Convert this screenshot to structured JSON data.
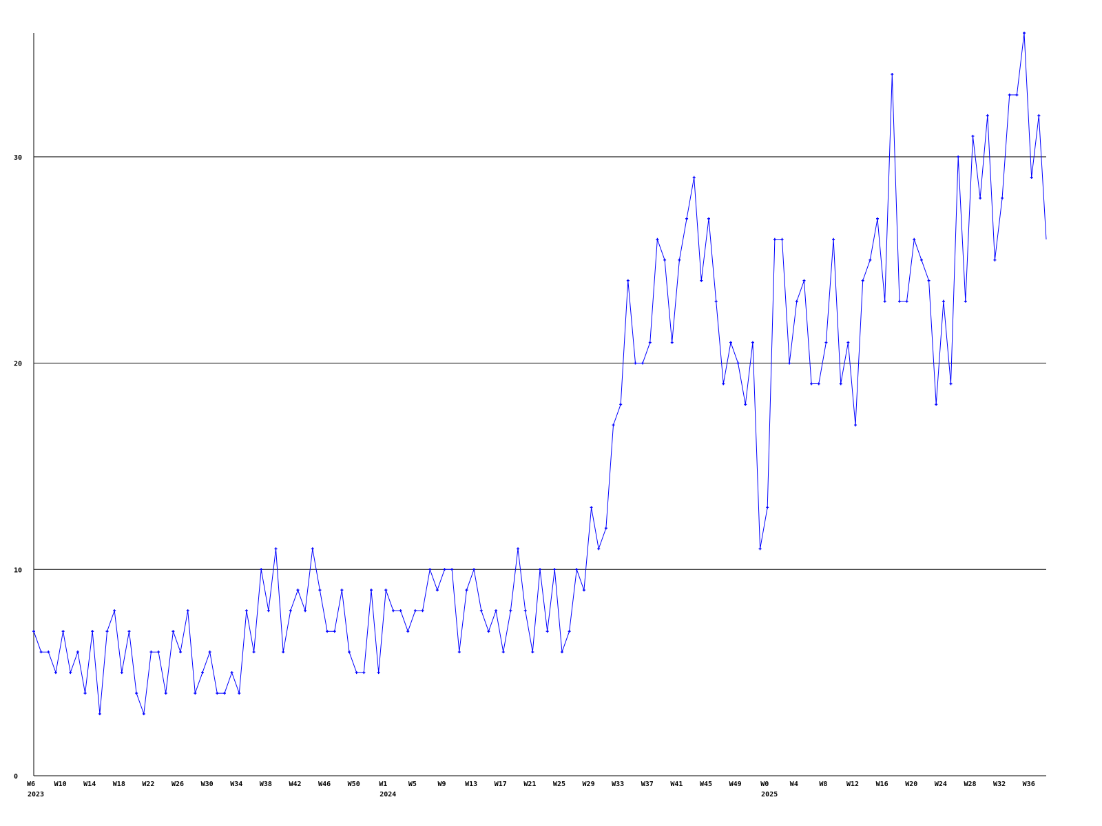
{
  "chart_data": {
    "type": "line",
    "title": "",
    "xlabel": "",
    "ylabel": "",
    "ylim": [
      0,
      36
    ],
    "grid": true,
    "legend": "none",
    "line_color": "#0000ff",
    "grid_color": "#000000",
    "y_ticks": [
      "0",
      "10",
      "20",
      "30"
    ],
    "x_ticks": [
      {
        "label": "W6",
        "year": "2023",
        "index": 0
      },
      {
        "label": "W10",
        "index": 4
      },
      {
        "label": "W14",
        "index": 8
      },
      {
        "label": "W18",
        "index": 12
      },
      {
        "label": "W22",
        "index": 16
      },
      {
        "label": "W26",
        "index": 20
      },
      {
        "label": "W30",
        "index": 24
      },
      {
        "label": "W34",
        "index": 28
      },
      {
        "label": "W38",
        "index": 32
      },
      {
        "label": "W42",
        "index": 36
      },
      {
        "label": "W46",
        "index": 40
      },
      {
        "label": "W50",
        "index": 44
      },
      {
        "label": "W1",
        "year": "2024",
        "index": 48
      },
      {
        "label": "W5",
        "index": 52
      },
      {
        "label": "W9",
        "index": 56
      },
      {
        "label": "W13",
        "index": 60
      },
      {
        "label": "W17",
        "index": 64
      },
      {
        "label": "W21",
        "index": 68
      },
      {
        "label": "W25",
        "index": 72
      },
      {
        "label": "W29",
        "index": 76
      },
      {
        "label": "W33",
        "index": 80
      },
      {
        "label": "W37",
        "index": 84
      },
      {
        "label": "W41",
        "index": 88
      },
      {
        "label": "W45",
        "index": 92
      },
      {
        "label": "W49",
        "index": 96
      },
      {
        "label": "W0",
        "year": "2025",
        "index": 100
      },
      {
        "label": "W4",
        "index": 104
      },
      {
        "label": "W8",
        "index": 108
      },
      {
        "label": "W12",
        "index": 112
      },
      {
        "label": "W16",
        "index": 116
      },
      {
        "label": "W20",
        "index": 120
      },
      {
        "label": "W24",
        "index": 124
      },
      {
        "label": "W28",
        "index": 128
      },
      {
        "label": "W32",
        "index": 132
      },
      {
        "label": "W36",
        "index": 136
      }
    ],
    "series": [
      {
        "values": [
          7,
          6,
          6,
          5,
          7,
          5,
          6,
          4,
          7,
          3,
          7,
          8,
          5,
          7,
          4,
          3,
          6,
          6,
          4,
          7,
          6,
          8,
          4,
          5,
          6,
          4,
          4,
          5,
          4,
          8,
          6,
          10,
          8,
          11,
          6,
          8,
          9,
          8,
          11,
          9,
          7,
          7,
          9,
          6,
          5,
          5,
          9,
          5,
          9,
          8,
          8,
          7,
          8,
          8,
          10,
          9,
          10,
          10,
          6,
          9,
          10,
          8,
          7,
          8,
          6,
          8,
          11,
          8,
          6,
          10,
          7,
          10,
          6,
          7,
          10,
          9,
          13,
          11,
          12,
          17,
          18,
          24,
          20,
          20,
          21,
          26,
          25,
          21,
          25,
          27,
          29,
          24,
          27,
          23,
          19,
          21,
          20,
          18,
          21,
          11,
          13,
          26,
          26,
          20,
          23,
          24,
          19,
          19,
          21,
          26,
          19,
          21,
          17,
          24,
          25,
          27,
          23,
          34,
          23,
          23,
          26,
          25,
          24,
          18,
          23,
          19,
          30,
          23,
          31,
          28,
          32,
          25,
          28,
          33,
          33,
          36,
          29,
          32,
          26
        ]
      }
    ]
  }
}
